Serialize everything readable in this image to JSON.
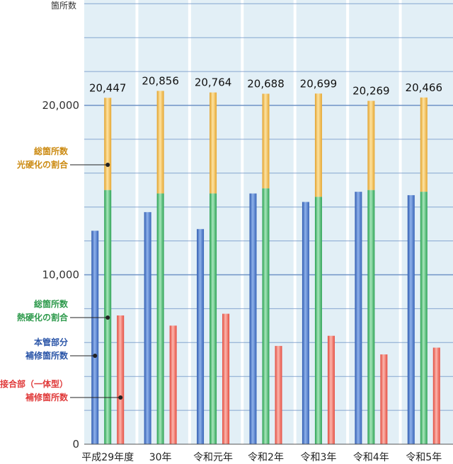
{
  "chart_data": {
    "type": "bar",
    "ylabel": "箇所数",
    "ylim": [
      0,
      26000
    ],
    "yticks": [
      0,
      10000,
      20000
    ],
    "ytick_labels": [
      "0",
      "10,000",
      "20,000"
    ],
    "categories": [
      "平成29年度",
      "30年",
      "令和元年",
      "令和2年",
      "令和3年",
      "令和4年",
      "令和5年"
    ],
    "totals": [
      20447,
      20856,
      20764,
      20688,
      20699,
      20269,
      20466
    ],
    "total_labels": [
      "20,447",
      "20,856",
      "20,764",
      "20,688",
      "20,699",
      "20,269",
      "20,466"
    ],
    "series": [
      {
        "name": "本管部分 補修箇所数",
        "values": [
          12600,
          13700,
          12700,
          14800,
          14300,
          14900,
          14700
        ]
      },
      {
        "name": "総箇所数 熱硬化の割合",
        "values": [
          15000,
          14800,
          14800,
          15100,
          14600,
          15000,
          14900
        ]
      },
      {
        "name": "接合部（一体型） 補修箇所数",
        "values": [
          7600,
          7000,
          7700,
          5800,
          6400,
          5300,
          5700
        ]
      }
    ],
    "colors": {
      "background": "#e2eff6",
      "grid": "#6f93c6",
      "blue": "#4e78c4",
      "green": "#3fb66a",
      "orange": "#efb33a",
      "red": "#ec5b4c",
      "label_orange": "#cc8b13",
      "label_green": "#2e9a4c",
      "label_blue": "#2a55a8",
      "label_red": "#e03a3a"
    },
    "annotations": [
      {
        "lines": [
          "総箇所数",
          "光硬化の割合"
        ],
        "color": "#cc8b13"
      },
      {
        "lines": [
          "総箇所数",
          "熱硬化の割合"
        ],
        "color": "#2e9a4c"
      },
      {
        "lines": [
          "本管部分",
          "補修箇所数"
        ],
        "color": "#2a55a8"
      },
      {
        "lines": [
          "接合部（一体型）",
          "補修箇所数"
        ],
        "color": "#e03a3a"
      }
    ]
  }
}
